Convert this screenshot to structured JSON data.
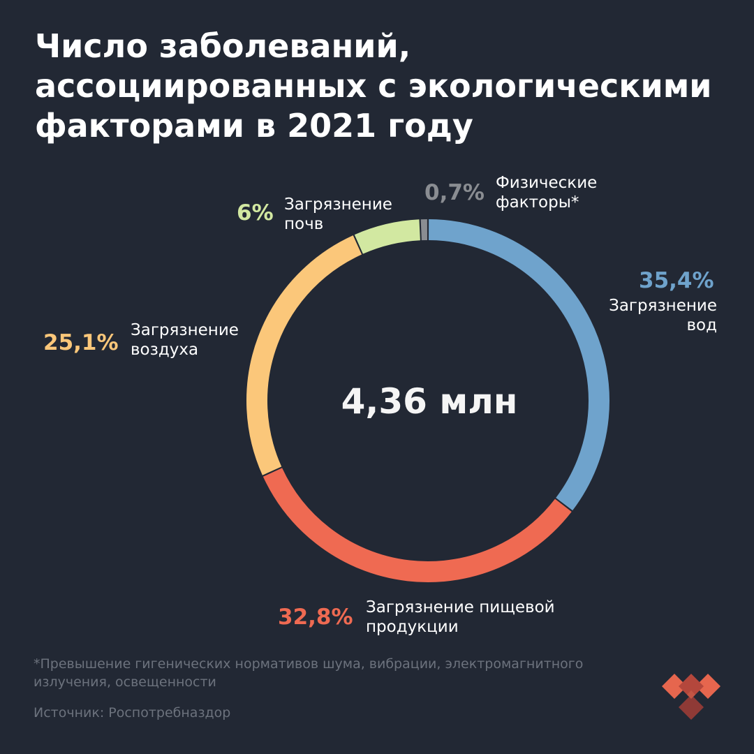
{
  "title": {
    "line1": "Число заболеваний,",
    "line2": "ассоциированных с экологическими",
    "line3": "факторами в 2021 году"
  },
  "center_total": "4,36 млн",
  "footnote": {
    "line1": "*Превышение гигенических нормативов шума, вибрации, электромагнитного",
    "line2": "излучения, освещенности"
  },
  "source": "Источник: Роспотребназдор",
  "logo": "brand-heart-logo",
  "colors": {
    "background": "#222834",
    "water": "#6fa3cc",
    "food": "#ef6a52",
    "air": "#fbc77a",
    "soil": "#d2e8a1",
    "physical": "#8a8d92"
  },
  "chart_data": {
    "type": "pie",
    "title": "Число заболеваний, ассоциированных с экологическими факторами в 2021 году",
    "total_label": "4,36 млн",
    "slices": [
      {
        "label_line1": "Загрязнение",
        "label_line2": "вод",
        "value": 35.4,
        "value_label": "35,4%",
        "color": "#6fa3cc"
      },
      {
        "label_line1": "Загрязнение пищевой",
        "label_line2": "продукции",
        "value": 32.8,
        "value_label": "32,8%",
        "color": "#ef6a52"
      },
      {
        "label_line1": "Загрязнение",
        "label_line2": "воздуха",
        "value": 25.1,
        "value_label": "25,1%",
        "color": "#fbc77a"
      },
      {
        "label_line1": "Загрязнение",
        "label_line2": "почв",
        "value": 6,
        "value_label": "6%",
        "color": "#d2e8a1"
      },
      {
        "label_line1": "Физические",
        "label_line2": "факторы*",
        "value": 0.7,
        "value_label": "0,7%",
        "color": "#8a8d92"
      }
    ]
  }
}
